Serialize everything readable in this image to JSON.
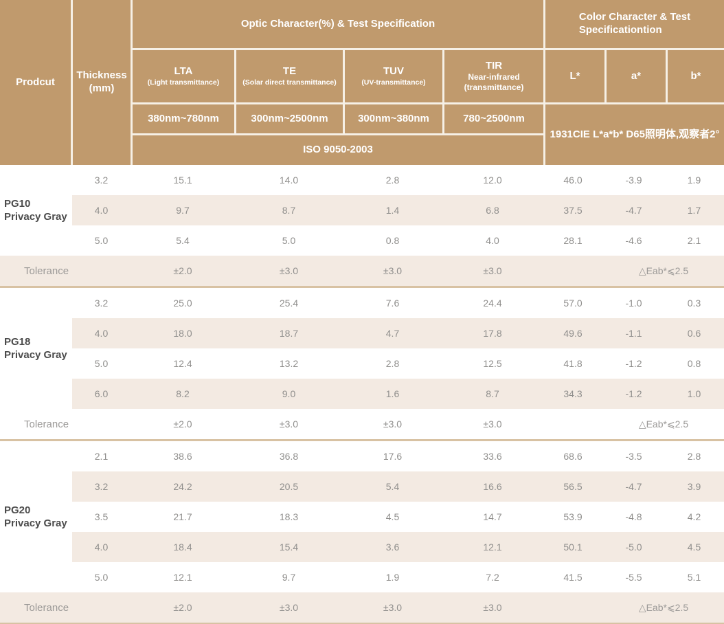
{
  "table": {
    "header": {
      "product": "Prodcut",
      "thickness_line1": "Thickness",
      "thickness_line2": "(mm)",
      "optic_title": "Optic Character(%) & Test Specification",
      "color_title_line1": "Color Character & Test",
      "color_title_line2": "Specificationtion",
      "optic_columns": [
        {
          "name": "LTA",
          "desc": "(Light transmittance)",
          "desc2": "",
          "range": "380nm~780nm"
        },
        {
          "name": "TE",
          "desc": "(Solar direct transmittance)",
          "desc2": "",
          "range": "300nm~2500nm"
        },
        {
          "name": "TUV",
          "desc": "(UV-transmittance)",
          "desc2": "",
          "range": "300nm~380nm"
        },
        {
          "name": "TIR",
          "desc": "Near-infrared",
          "desc2": "(transmittance)",
          "range": "780~2500nm"
        }
      ],
      "lab_columns": [
        "L*",
        "a*",
        "b*"
      ],
      "iso": "ISO 9050-2003",
      "cie": "1931CIE L*a*b*  D65照明体,观察者2°"
    },
    "sections": [
      {
        "code": "PG10",
        "name": "Privacy Gray",
        "rows": [
          {
            "thickness": "3.2",
            "values": [
              "15.1",
              "14.0",
              "2.8",
              "12.0",
              "46.0",
              "-3.9",
              "1.9"
            ]
          },
          {
            "thickness": "4.0",
            "values": [
              "9.7",
              "8.7",
              "1.4",
              "6.8",
              "37.5",
              "-4.7",
              "1.7"
            ]
          },
          {
            "thickness": "5.0",
            "values": [
              "5.4",
              "5.0",
              "0.8",
              "4.0",
              "28.1",
              "-4.6",
              "2.1"
            ]
          }
        ],
        "tolerance": {
          "label": "Tolerance",
          "values": [
            "±2.0",
            "±3.0",
            "±3.0",
            "±3.0"
          ],
          "eab": "△Eab*⩽2.5"
        }
      },
      {
        "code": "PG18",
        "name": "Privacy Gray",
        "rows": [
          {
            "thickness": "3.2",
            "values": [
              "25.0",
              "25.4",
              "7.6",
              "24.4",
              "57.0",
              "-1.0",
              "0.3"
            ]
          },
          {
            "thickness": "4.0",
            "values": [
              "18.0",
              "18.7",
              "4.7",
              "17.8",
              "49.6",
              "-1.1",
              "0.6"
            ]
          },
          {
            "thickness": "5.0",
            "values": [
              "12.4",
              "13.2",
              "2.8",
              "12.5",
              "41.8",
              "-1.2",
              "0.8"
            ]
          },
          {
            "thickness": "6.0",
            "values": [
              "8.2",
              "9.0",
              "1.6",
              "8.7",
              "34.3",
              "-1.2",
              "1.0"
            ]
          }
        ],
        "tolerance": {
          "label": "Tolerance",
          "values": [
            "±2.0",
            "±3.0",
            "±3.0",
            "±3.0"
          ],
          "eab": "△Eab*⩽2.5"
        }
      },
      {
        "code": "PG20",
        "name": "Privacy Gray",
        "rows": [
          {
            "thickness": "2.1",
            "values": [
              "38.6",
              "36.8",
              "17.6",
              "33.6",
              "68.6",
              "-3.5",
              "2.8"
            ]
          },
          {
            "thickness": "3.2",
            "values": [
              "24.2",
              "20.5",
              "5.4",
              "16.6",
              "56.5",
              "-4.7",
              "3.9"
            ]
          },
          {
            "thickness": "3.5",
            "values": [
              "21.7",
              "18.3",
              "4.5",
              "14.7",
              "53.9",
              "-4.8",
              "4.2"
            ]
          },
          {
            "thickness": "4.0",
            "values": [
              "18.4",
              "15.4",
              "3.6",
              "12.1",
              "50.1",
              "-5.0",
              "4.5"
            ]
          },
          {
            "thickness": "5.0",
            "values": [
              "12.1",
              "9.7",
              "1.9",
              "7.2",
              "41.5",
              "-5.5",
              "5.1"
            ]
          }
        ],
        "tolerance": {
          "label": "Tolerance",
          "values": [
            "±2.0",
            "±3.0",
            "±3.0",
            "±3.0"
          ],
          "eab": "△Eab*⩽2.5"
        }
      }
    ],
    "colors": {
      "header_bg": "#c09a6d",
      "header_text": "#ffffff",
      "shaded_row_bg": "#f3eae2",
      "divider": "#d8c2a3",
      "value_text": "#8f8e8c",
      "product_text": "#4b4b4b"
    }
  }
}
